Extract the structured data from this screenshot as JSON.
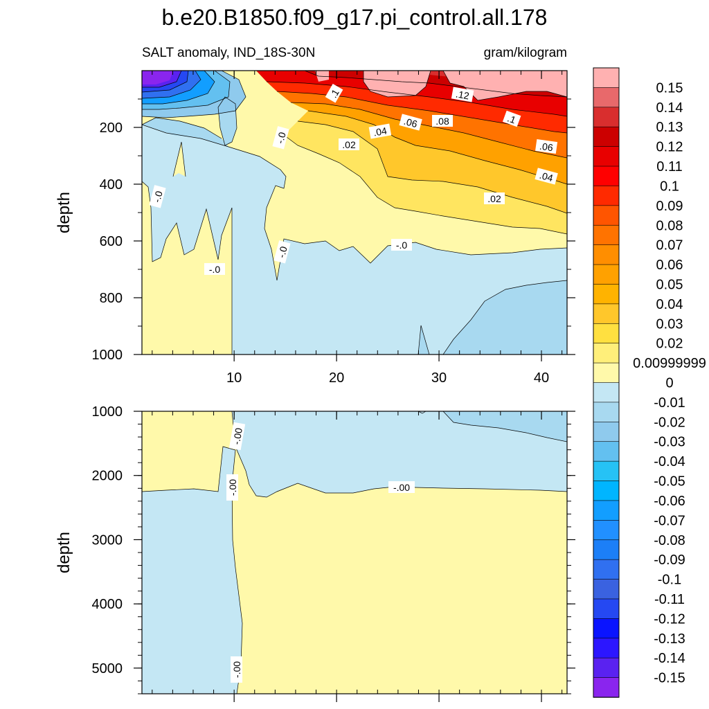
{
  "title": "b.e20.B1850.f09_g17.pi_control.all.178",
  "subtitle_left": "SALT anomaly, IND_18S-30N",
  "subtitle_right": "gram/kilogram",
  "chart_data": [
    {
      "type": "contour",
      "panel": "upper",
      "ylabel": "depth",
      "xlim": [
        1,
        42.5
      ],
      "ylim": [
        1000,
        0
      ],
      "x_ticks": [
        "10",
        "20",
        "30",
        "40"
      ],
      "y_ticks": [
        "200",
        "400",
        "600",
        "800",
        "1000"
      ],
      "contour_labels": [
        ".1",
        ".12",
        "-.0",
        ".04",
        ".06",
        ".08",
        ".1",
        ".02",
        ".06",
        ".04",
        "-.0",
        ".02",
        "-.0",
        "-.0",
        "-.0"
      ],
      "regions": [
        {
          "level": "0.15+",
          "color": "#ffb1b1",
          "description": "near-surface maximum east of x=22"
        },
        {
          "level": "0.13",
          "color": "#e8534f"
        },
        {
          "level": "0.12",
          "color": "#d20a0a"
        },
        {
          "level": "0.10",
          "color": "#ff1f00"
        },
        {
          "level": "0.08",
          "color": "#ff6200"
        },
        {
          "level": "0.06",
          "color": "#ff8800"
        },
        {
          "level": "0.04",
          "color": "#ffbd1e"
        },
        {
          "level": "0.02",
          "color": "#ffe560"
        },
        {
          "level": "0.01",
          "color": "#fff9aa"
        },
        {
          "level": "0",
          "color": "#c4e7f4"
        },
        {
          "level": "-0.02",
          "color": "#a4d7ee"
        },
        {
          "level": "-0.15",
          "color": "#8820ee",
          "description": "western surface minimum"
        }
      ]
    },
    {
      "type": "contour",
      "panel": "lower",
      "ylabel": "depth",
      "xlim": [
        1,
        42.5
      ],
      "ylim": [
        5400,
        1000
      ],
      "y_ticks": [
        "1000",
        "2000",
        "3000",
        "4000",
        "5000"
      ],
      "contour_labels": [
        "-.00",
        "-.00",
        "-.00",
        "-.00"
      ]
    }
  ],
  "colorbar": {
    "labels": [
      "0.15",
      "0.14",
      "0.13",
      "0.12",
      "0.11",
      "0.1",
      "0.09",
      "0.08",
      "0.07",
      "0.06",
      "0.05",
      "0.04",
      "0.03",
      "0.02",
      "0.00999999",
      "0",
      "-0.01",
      "-0.02",
      "-0.03",
      "-0.04",
      "-0.05",
      "-0.06",
      "-0.07",
      "-0.08",
      "-0.09",
      "-0.1",
      "-0.11",
      "-0.12",
      "-0.13",
      "-0.14",
      "-0.15"
    ],
    "colors": [
      "#ffb1b1",
      "#e8696b",
      "#d92e2e",
      "#cc0000",
      "#e80000",
      "#ff0000",
      "#ff2a00",
      "#ff5500",
      "#ff7300",
      "#ff8e00",
      "#ffa100",
      "#ffb300",
      "#ffc72b",
      "#ffe040",
      "#ffef7a",
      "#fff9aa",
      "#c4e7f4",
      "#a8d9f0",
      "#8fcaed",
      "#63c0f0",
      "#26c2f5",
      "#00b5ff",
      "#129eff",
      "#2190ff",
      "#1c7ff7",
      "#3070f0",
      "#3a62e0",
      "#2548f2",
      "#0a14ff",
      "#2c16ff",
      "#5a22f0",
      "#8a25ee"
    ]
  }
}
